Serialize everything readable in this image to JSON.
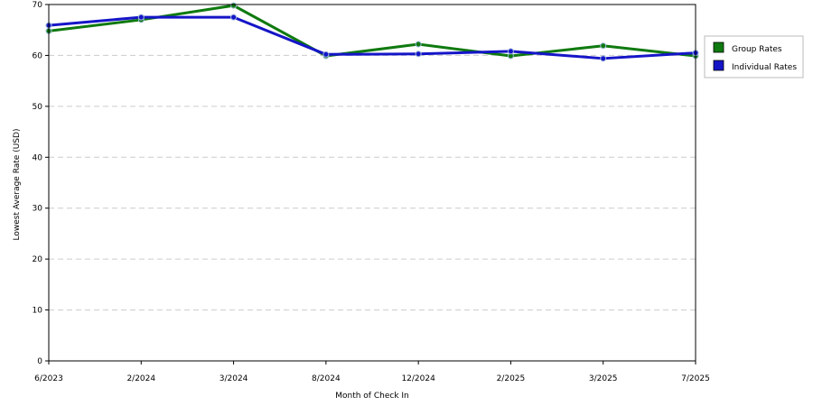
{
  "chart_data": {
    "type": "line",
    "xlabel": "Month of Check In",
    "ylabel": "Lowest Average Rate (USD)",
    "categories": [
      "6/2023",
      "2/2024",
      "3/2024",
      "8/2024",
      "12/2024",
      "2/2025",
      "3/2025",
      "7/2025"
    ],
    "ylim": [
      0,
      70
    ],
    "yticks": [
      0,
      10,
      20,
      30,
      40,
      50,
      60,
      70
    ],
    "grid": true,
    "legend_position": "right",
    "series": [
      {
        "name": "Group Rates",
        "color": "#0f7a0f",
        "values": [
          64.8,
          67.0,
          69.8,
          59.9,
          62.2,
          59.9,
          61.9,
          59.9
        ]
      },
      {
        "name": "Individual Rates",
        "color": "#1515c8",
        "values": [
          65.9,
          67.5,
          67.5,
          60.2,
          60.3,
          60.8,
          59.4,
          60.5
        ]
      }
    ]
  }
}
